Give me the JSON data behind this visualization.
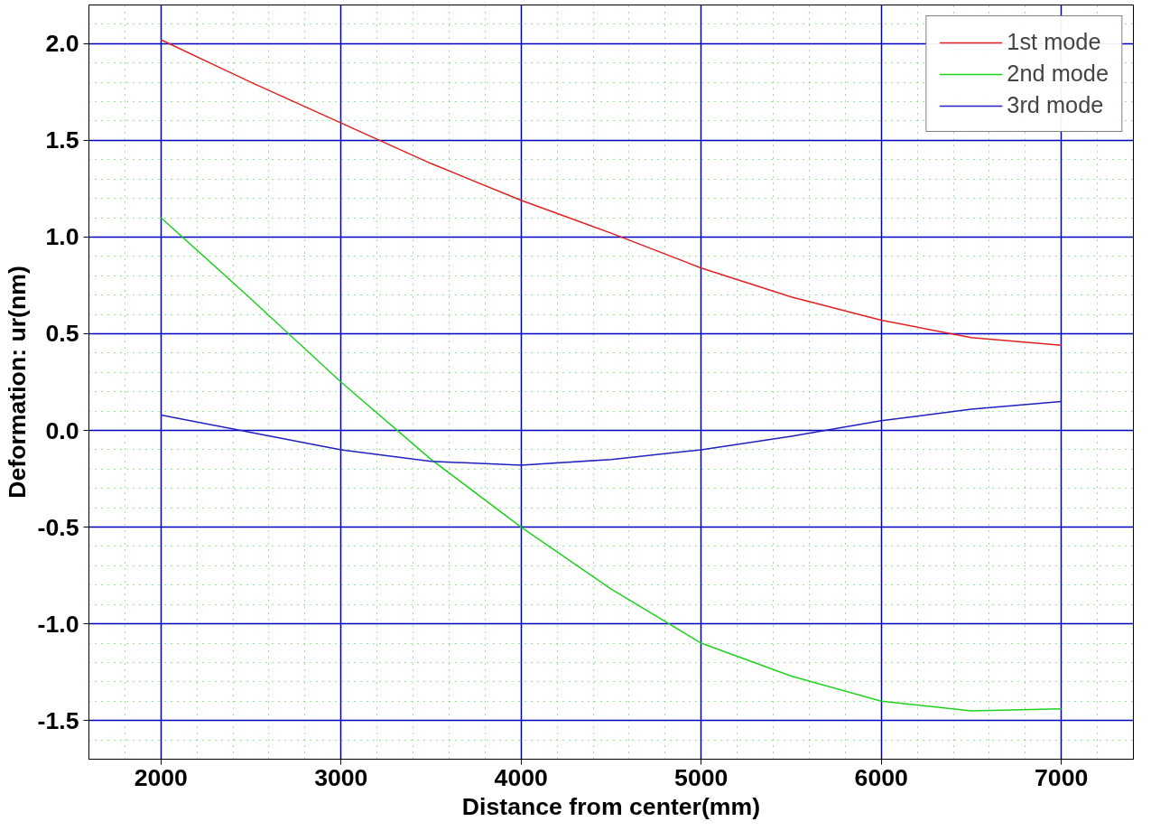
{
  "chart_data": {
    "type": "line",
    "xlabel": "Distance from center(mm)",
    "ylabel": "Deformation: ur(nm)",
    "x": [
      2000,
      2500,
      3000,
      3500,
      4000,
      4500,
      5000,
      5500,
      6000,
      6500,
      7000
    ],
    "series": [
      {
        "name": "1st mode",
        "color": "#e02020",
        "values": [
          2.02,
          1.8,
          1.59,
          1.38,
          1.19,
          1.02,
          0.84,
          0.69,
          0.57,
          0.48,
          0.44
        ]
      },
      {
        "name": "2nd mode",
        "color": "#20d020",
        "values": [
          1.1,
          0.68,
          0.25,
          -0.15,
          -0.5,
          -0.82,
          -1.1,
          -1.27,
          -1.4,
          -1.45,
          -1.44
        ]
      },
      {
        "name": "3rd mode",
        "color": "#2020c0",
        "values": [
          0.08,
          -0.01,
          -0.1,
          -0.16,
          -0.18,
          -0.15,
          -0.1,
          -0.03,
          0.05,
          0.11,
          0.15
        ]
      }
    ],
    "xlim": [
      1600,
      7400
    ],
    "ylim": [
      -1.7,
      2.2
    ],
    "xticks": [
      {
        "value": 1600,
        "label": null
      },
      {
        "value": 1800,
        "label": null
      },
      2000,
      {
        "value": 2200,
        "label": null
      },
      {
        "value": 2400,
        "label": null
      },
      {
        "value": 2600,
        "label": null
      },
      {
        "value": 2800,
        "label": null
      },
      3000,
      {
        "value": 3200,
        "label": null
      },
      {
        "value": 3400,
        "label": null
      },
      {
        "value": 3600,
        "label": null
      },
      {
        "value": 3800,
        "label": null
      },
      4000,
      {
        "value": 4200,
        "label": null
      },
      {
        "value": 4400,
        "label": null
      },
      {
        "value": 4600,
        "label": null
      },
      {
        "value": 4800,
        "label": null
      },
      5000,
      {
        "value": 5200,
        "label": null
      },
      {
        "value": 5400,
        "label": null
      },
      {
        "value": 5600,
        "label": null
      },
      {
        "value": 5800,
        "label": null
      },
      6000,
      {
        "value": 6200,
        "label": null
      },
      {
        "value": 6400,
        "label": null
      },
      {
        "value": 6600,
        "label": null
      },
      {
        "value": 6800,
        "label": null
      },
      7000,
      {
        "value": 7200,
        "label": null
      }
    ],
    "yticks": [
      {
        "value": -1.6,
        "label": null
      },
      {
        "value": -1.5,
        "label": "-1.5"
      },
      {
        "value": -1.4,
        "label": null
      },
      {
        "value": -1.3,
        "label": null
      },
      {
        "value": -1.2,
        "label": null
      },
      {
        "value": -1.1,
        "label": null
      },
      {
        "value": -1.0,
        "label": "-1.0"
      },
      {
        "value": -0.9,
        "label": null
      },
      {
        "value": -0.8,
        "label": null
      },
      {
        "value": -0.7,
        "label": null
      },
      {
        "value": -0.6,
        "label": null
      },
      {
        "value": -0.5,
        "label": "-0.5"
      },
      {
        "value": -0.4,
        "label": null
      },
      {
        "value": -0.3,
        "label": null
      },
      {
        "value": -0.2,
        "label": null
      },
      {
        "value": -0.1,
        "label": null
      },
      {
        "value": 0,
        "label": "0.0"
      },
      {
        "value": 0.1,
        "label": null
      },
      {
        "value": 0.2,
        "label": null
      },
      {
        "value": 0.3,
        "label": null
      },
      {
        "value": 0.4,
        "label": null
      },
      {
        "value": 0.5,
        "label": "0.5"
      },
      {
        "value": 0.6,
        "label": null
      },
      {
        "value": 0.7,
        "label": null
      },
      {
        "value": 0.8,
        "label": null
      },
      {
        "value": 0.9,
        "label": null
      },
      {
        "value": 1.0,
        "label": "1.0"
      },
      {
        "value": 1.1,
        "label": null
      },
      {
        "value": 1.2,
        "label": null
      },
      {
        "value": 1.3,
        "label": null
      },
      {
        "value": 1.4,
        "label": null
      },
      {
        "value": 1.5,
        "label": "1.5"
      },
      {
        "value": 1.6,
        "label": null
      },
      {
        "value": 1.7,
        "label": null
      },
      {
        "value": 1.8,
        "label": null
      },
      {
        "value": 1.9,
        "label": null
      },
      {
        "value": 2.0,
        "label": "2.0"
      },
      {
        "value": 2.1,
        "label": null
      }
    ],
    "grid": true,
    "legend": "top right"
  }
}
